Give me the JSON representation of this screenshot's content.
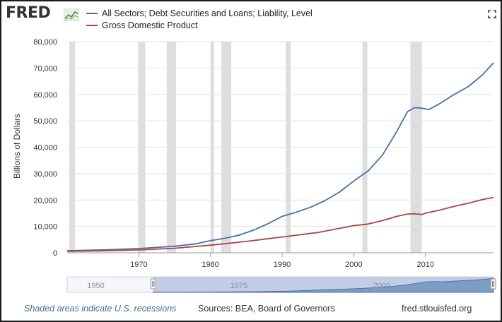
{
  "header": {
    "logo_text": "FRED",
    "logo_icon": "line-chart-icon",
    "expand_icon": "expand-icon"
  },
  "legend": [
    {
      "label": "All Sectors; Debt Securities and Loans; Liability, Level",
      "color": "#4572a7"
    },
    {
      "label": "Gross Domestic Product",
      "color": "#aa4643"
    }
  ],
  "footer": {
    "note": "Shaded areas indicate U.S. recessions",
    "sources": "Sources: BEA, Board of Governors",
    "site": "fred.stlouisfed.org"
  },
  "navigator": {
    "labels": [
      "1950",
      "1975",
      "2000"
    ],
    "selection": [
      1960,
      2019.5
    ],
    "range": [
      1945,
      2019.5
    ]
  },
  "chart_data": {
    "type": "line",
    "ylabel": "Billions of Dollars",
    "xlim": [
      1960,
      2019.5
    ],
    "ylim": [
      0,
      80000
    ],
    "yticks": [
      0,
      10000,
      20000,
      30000,
      40000,
      50000,
      60000,
      70000,
      80000
    ],
    "ytick_labels": [
      "0",
      "10,000",
      "20,000",
      "30,000",
      "40,000",
      "50,000",
      "60,000",
      "70,000",
      "80,000"
    ],
    "xticks": [
      1970,
      1980,
      1990,
      2000,
      2010
    ],
    "xtick_labels": [
      "1970",
      "1980",
      "1990",
      "2000",
      "2010"
    ],
    "grid": true,
    "recessions": [
      [
        1960.3,
        1961.1
      ],
      [
        1969.9,
        1970.9
      ],
      [
        1973.9,
        1975.2
      ],
      [
        1980.0,
        1980.5
      ],
      [
        1981.5,
        1982.9
      ],
      [
        1990.5,
        1991.2
      ],
      [
        2001.2,
        2001.9
      ],
      [
        2007.9,
        2009.5
      ]
    ],
    "series": [
      {
        "name": "All Sectors; Debt Securities and Loans; Liability, Level",
        "color": "#4572a7",
        "x": [
          1960,
          1965,
          1970,
          1975,
          1978,
          1980,
          1982,
          1984,
          1986,
          1988,
          1990,
          1992,
          1994,
          1996,
          1998,
          2000,
          2002,
          2004,
          2006,
          2007.5,
          2008.5,
          2009.5,
          2010.5,
          2012,
          2014,
          2016,
          2018,
          2019.5
        ],
        "values": [
          800,
          1100,
          1600,
          2500,
          3400,
          4600,
          5500,
          6700,
          8600,
          11000,
          13800,
          15400,
          17300,
          19800,
          23000,
          27200,
          31000,
          37000,
          46000,
          53500,
          55000,
          54800,
          54300,
          56500,
          60000,
          63000,
          67500,
          72000
        ]
      },
      {
        "name": "Gross Domestic Product",
        "color": "#aa4643",
        "x": [
          1960,
          1965,
          1970,
          1975,
          1980,
          1985,
          1990,
          1995,
          2000,
          2002,
          2004,
          2006,
          2007.5,
          2008.5,
          2009.5,
          2010,
          2012,
          2014,
          2016,
          2018,
          2019.5
        ],
        "values": [
          550,
          750,
          1100,
          1700,
          2900,
          4300,
          6000,
          7700,
          10300,
          10900,
          12200,
          13800,
          14700,
          14800,
          14500,
          15000,
          16200,
          17600,
          18800,
          20200,
          21000
        ]
      }
    ]
  }
}
